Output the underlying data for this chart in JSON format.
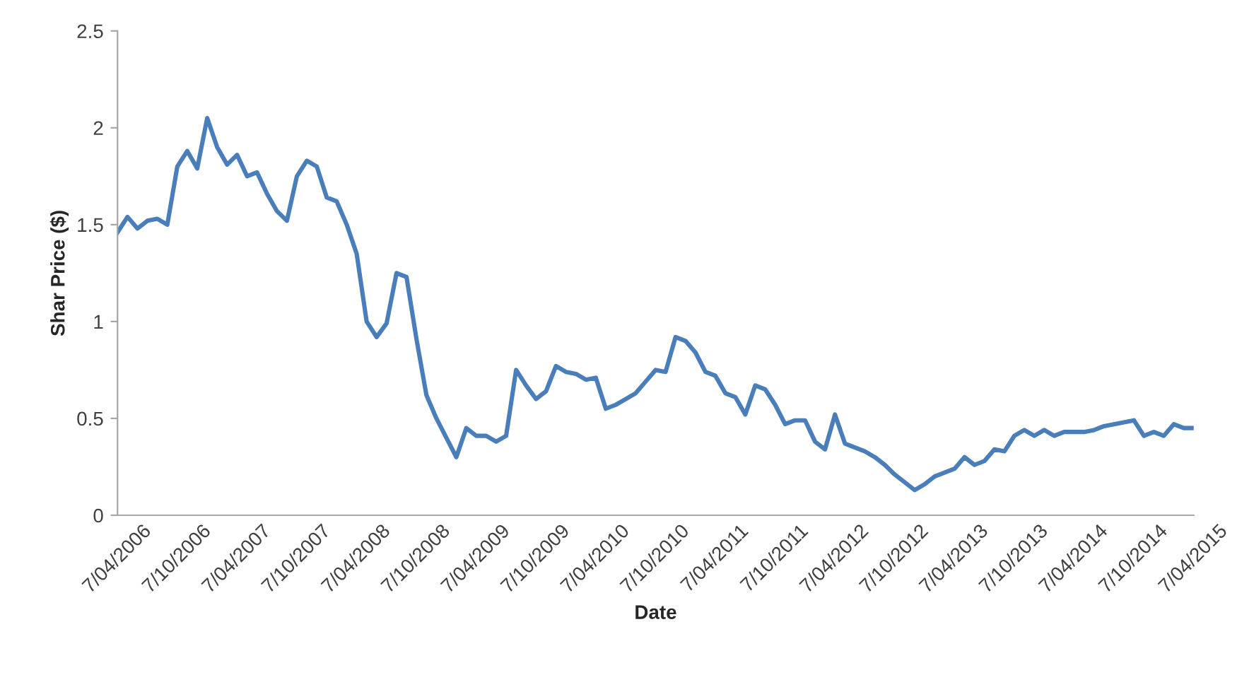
{
  "chart_data": {
    "type": "line",
    "xlabel": "Date",
    "ylabel": "Shar Price ($)",
    "categories": [
      "7/04/2006",
      null,
      null,
      null,
      null,
      null,
      "7/10/2006",
      null,
      null,
      null,
      null,
      null,
      "7/04/2007",
      null,
      null,
      null,
      null,
      null,
      "7/10/2007",
      null,
      null,
      null,
      null,
      null,
      "7/04/2008",
      null,
      null,
      null,
      null,
      null,
      "7/10/2008",
      null,
      null,
      null,
      null,
      null,
      "7/04/2009",
      null,
      null,
      null,
      null,
      null,
      "7/10/2009",
      null,
      null,
      null,
      null,
      null,
      "7/04/2010",
      null,
      null,
      null,
      null,
      null,
      "7/10/2010",
      null,
      null,
      null,
      null,
      null,
      "7/04/2011",
      null,
      null,
      null,
      null,
      null,
      "7/10/2011",
      null,
      null,
      null,
      null,
      null,
      "7/04/2012",
      null,
      null,
      null,
      null,
      null,
      "7/10/2012",
      null,
      null,
      null,
      null,
      null,
      "7/04/2013",
      null,
      null,
      null,
      null,
      null,
      "7/10/2013",
      null,
      null,
      null,
      null,
      null,
      "7/04/2014",
      null,
      null,
      null,
      null,
      null,
      "7/10/2014",
      null,
      null,
      null,
      null,
      null,
      "7/04/2015"
    ],
    "series": [
      {
        "color": "#4a7ebb",
        "values": [
          1.46,
          1.54,
          1.48,
          1.52,
          1.53,
          1.5,
          1.8,
          1.88,
          1.79,
          2.05,
          1.9,
          1.81,
          1.86,
          1.75,
          1.77,
          1.66,
          1.57,
          1.52,
          1.75,
          1.83,
          1.8,
          1.64,
          1.62,
          1.5,
          1.35,
          1.0,
          0.92,
          0.99,
          1.25,
          1.23,
          0.91,
          0.62,
          0.5,
          0.4,
          0.3,
          0.45,
          0.41,
          0.41,
          0.38,
          0.41,
          0.75,
          0.67,
          0.6,
          0.64,
          0.77,
          0.74,
          0.73,
          0.7,
          0.71,
          0.55,
          0.57,
          0.6,
          0.63,
          0.69,
          0.75,
          0.74,
          0.92,
          0.9,
          0.84,
          0.74,
          0.72,
          0.63,
          0.61,
          0.52,
          0.67,
          0.65,
          0.57,
          0.47,
          0.49,
          0.49,
          0.38,
          0.34,
          0.52,
          0.37,
          0.35,
          0.33,
          0.3,
          0.26,
          0.21,
          0.17,
          0.13,
          0.16,
          0.2,
          0.22,
          0.24,
          0.3,
          0.26,
          0.28,
          0.34,
          0.33,
          0.41,
          0.44,
          0.41,
          0.44,
          0.41,
          0.43,
          0.43,
          0.43,
          0.44,
          0.46,
          0.47,
          0.48,
          0.49,
          0.41,
          0.43,
          0.41,
          0.47,
          0.45,
          0.45
        ]
      }
    ],
    "ylim": [
      0,
      2.5
    ],
    "yticks": [
      0,
      0.5,
      1,
      1.5,
      2,
      2.5
    ],
    "grid": false,
    "marker": "none",
    "line_style": "solid"
  }
}
